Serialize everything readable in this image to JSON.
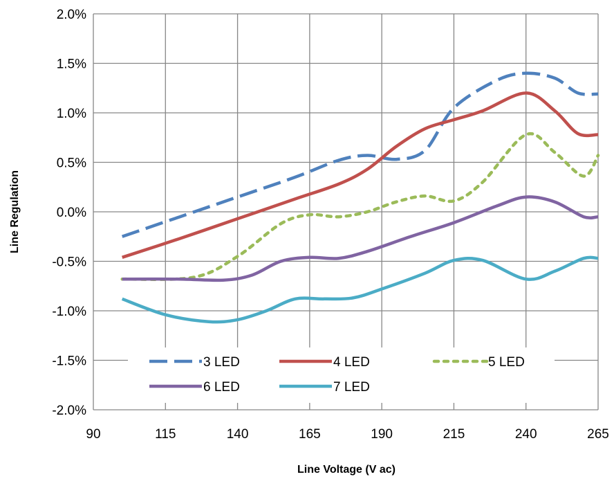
{
  "chart_data": {
    "type": "line",
    "xlabel": "Line Voltage  (V ac)",
    "ylabel": "Line Regulation",
    "xlim": [
      90,
      265
    ],
    "ylim": [
      -2.0,
      2.0
    ],
    "x_ticks": [
      "90",
      "115",
      "140",
      "165",
      "190",
      "215",
      "240",
      "265"
    ],
    "y_ticks": [
      "2.0%",
      "1.5%",
      "1.0%",
      "0.5%",
      "0.0%",
      "-0.5%",
      "-1.0%",
      "-1.5%",
      "-2.0%"
    ],
    "grid": true,
    "legend": "bottom, inside plot area",
    "series": [
      {
        "name": "3 LED",
        "color": "#4F81BD",
        "style": "dashed",
        "x": [
          100,
          120,
          140,
          160,
          175,
          185,
          195,
          205,
          215,
          230,
          240,
          250,
          258,
          265
        ],
        "y": [
          -0.25,
          -0.05,
          0.15,
          0.35,
          0.52,
          0.57,
          0.53,
          0.62,
          1.05,
          1.33,
          1.4,
          1.35,
          1.2,
          1.19
        ]
      },
      {
        "name": "4 LED",
        "color": "#C0504D",
        "style": "solid",
        "x": [
          100,
          120,
          140,
          160,
          175,
          185,
          195,
          205,
          215,
          225,
          240,
          250,
          258,
          265
        ],
        "y": [
          -0.46,
          -0.27,
          -0.07,
          0.13,
          0.28,
          0.43,
          0.66,
          0.84,
          0.93,
          1.02,
          1.2,
          1.02,
          0.79,
          0.78
        ]
      },
      {
        "name": "5 LED",
        "color": "#9BBB59",
        "style": "dotted",
        "x": [
          100,
          125,
          140,
          155,
          165,
          175,
          185,
          195,
          205,
          215,
          225,
          240,
          250,
          260,
          265
        ],
        "y": [
          -0.68,
          -0.66,
          -0.45,
          -0.12,
          -0.03,
          -0.05,
          0.0,
          0.1,
          0.16,
          0.11,
          0.3,
          0.78,
          0.6,
          0.36,
          0.57
        ]
      },
      {
        "name": "6 LED",
        "color": "#8064A2",
        "style": "solid",
        "x": [
          100,
          120,
          135,
          145,
          155,
          165,
          175,
          185,
          200,
          215,
          230,
          240,
          250,
          260,
          265
        ],
        "y": [
          -0.68,
          -0.68,
          -0.69,
          -0.64,
          -0.5,
          -0.46,
          -0.47,
          -0.4,
          -0.25,
          -0.11,
          0.06,
          0.15,
          0.1,
          -0.05,
          -0.05
        ]
      },
      {
        "name": "7 LED",
        "color": "#4BACC6",
        "style": "solid",
        "x": [
          100,
          115,
          130,
          140,
          150,
          160,
          170,
          180,
          190,
          205,
          215,
          225,
          240,
          250,
          260,
          265
        ],
        "y": [
          -0.88,
          -1.04,
          -1.11,
          -1.09,
          -1.0,
          -0.88,
          -0.88,
          -0.87,
          -0.78,
          -0.62,
          -0.49,
          -0.49,
          -0.68,
          -0.6,
          -0.47,
          -0.47
        ]
      }
    ]
  }
}
